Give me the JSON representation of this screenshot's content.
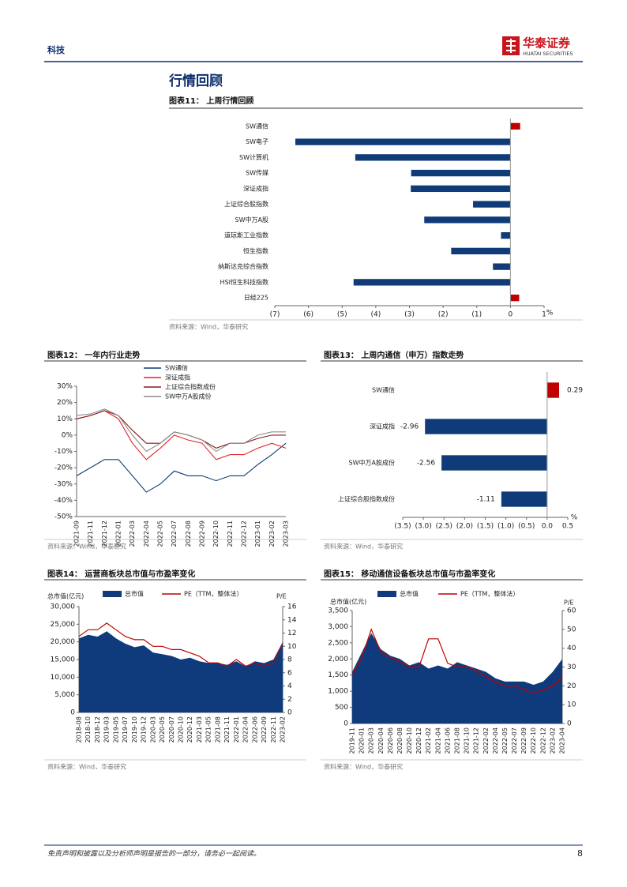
{
  "header": {
    "section": "科技",
    "brand": "华泰证券",
    "brand_en": "HUATAI SECURITIES"
  },
  "section_title": "行情回顾",
  "footer": {
    "disclaimer": "免责声明和披露以及分析师声明是报告的一部分，请务必一起阅读。",
    "page": 8
  },
  "chart_data": [
    {
      "type": "barh",
      "title": "图表11： 上周行情回顾",
      "source": "资料来源：Wind，华泰研究",
      "xlabel": "%",
      "categories": [
        "SW通信",
        "SW电子",
        "SW计算机",
        "SW传媒",
        "深证成指",
        "上证综合股指数",
        "SW中万A股",
        "道琼斯工业指数",
        "恒生指数",
        "纳斯达克综合指数",
        "HSI恒生科技指数",
        "日经225"
      ],
      "values": [
        0.29,
        -6.39,
        -4.61,
        -2.95,
        -2.96,
        -1.11,
        -2.56,
        -0.28,
        -1.76,
        -0.52,
        -4.66,
        0.26
      ],
      "positive_color": "#c00000",
      "negative_color": "#0f3b78",
      "data_labels": false,
      "xlim": [
        -7,
        1
      ],
      "xticks": [
        {
          "value": -7,
          "label": "(7)"
        },
        {
          "value": -6,
          "label": "(6)"
        },
        {
          "value": -5,
          "label": "(5)"
        },
        {
          "value": -4,
          "label": "(4)"
        },
        {
          "value": -3,
          "label": "(3)"
        },
        {
          "value": -2,
          "label": "(2)"
        },
        {
          "value": -1,
          "label": "(1)"
        },
        0,
        1
      ]
    },
    {
      "type": "line",
      "title": "图表12： 一年内行业走势",
      "source": "资料来源：Wind，华泰研究",
      "categories": [
        "2021-09",
        "2021-11",
        "2021-12",
        "2022-01",
        "2022-03",
        "2022-04",
        "2022-05",
        "2022-07",
        "2022-08",
        "2022-09",
        "2022-10",
        "2022-11",
        "2022-12",
        "2023-01",
        "2023-02",
        "2023-03"
      ],
      "series": [
        {
          "name": "SW通信",
          "color": "#0f3b78",
          "values": [
            -25,
            -20,
            -15,
            -15,
            -25,
            -35,
            -30,
            -22,
            -25,
            -25,
            -28,
            -25,
            -25,
            -18,
            -12,
            -5
          ]
        },
        {
          "name": "深证成指",
          "color": "#e0262b",
          "values": [
            10,
            12,
            15,
            10,
            -5,
            -15,
            -8,
            0,
            -3,
            -5,
            -15,
            -12,
            -12,
            -8,
            -5,
            -8
          ]
        },
        {
          "name": "上证综合指数成份",
          "color": "#8b1a1a",
          "values": [
            10,
            12,
            15,
            12,
            3,
            -5,
            -5,
            2,
            0,
            -3,
            -8,
            -5,
            -5,
            -2,
            0,
            0
          ]
        },
        {
          "name": "SW中万A股成份",
          "color": "#8c8c8c",
          "values": [
            12,
            13,
            16,
            12,
            0,
            -10,
            -5,
            2,
            0,
            -3,
            -10,
            -5,
            -5,
            0,
            2,
            2
          ]
        }
      ],
      "ylim": [
        -50,
        30
      ],
      "yticks": [
        {
          "value": -50,
          "label": "-50%"
        },
        {
          "value": -40,
          "label": "-40%"
        },
        {
          "value": -30,
          "label": "-30%"
        },
        {
          "value": -20,
          "label": "-20%"
        },
        {
          "value": -10,
          "label": "-10%"
        },
        {
          "value": 0,
          "label": "0%"
        },
        {
          "value": 10,
          "label": "10%"
        },
        {
          "value": 20,
          "label": "20%"
        },
        {
          "value": 30,
          "label": "30%"
        }
      ]
    },
    {
      "type": "barh",
      "title": "图表13： 上周内通信（申万）指数走势",
      "source": "资料来源：Wind，华泰研究",
      "xlabel": "%",
      "categories": [
        "SW通信",
        "深证成指",
        "SW中万A股成份",
        "上证综合股指数成份"
      ],
      "values": [
        0.29,
        -2.96,
        -2.56,
        -1.11
      ],
      "positive_color": "#c00000",
      "negative_color": "#0f3b78",
      "data_labels": true,
      "xlim": [
        -3.5,
        0.5
      ],
      "xticks": [
        {
          "value": -3.5,
          "label": "(3.5)"
        },
        {
          "value": -3,
          "label": "(3.0)"
        },
        {
          "value": -2.5,
          "label": "(2.5)"
        },
        {
          "value": -2,
          "label": "(2.0)"
        },
        {
          "value": -1.5,
          "label": "(1.5)"
        },
        {
          "value": -1,
          "label": "(1.0)"
        },
        {
          "value": -0.5,
          "label": "(0.5)"
        },
        {
          "value": 0,
          "label": "0.0"
        },
        0.5
      ]
    },
    {
      "type": "combo",
      "title": "图表14： 运营商板块总市值与市盈率变化",
      "source": "资料来源：Wind，华泰研究",
      "ylabel": "总市值(亿元)",
      "y2label": "P/E",
      "categories": [
        "2018-08",
        "2018-10",
        "2018-12",
        "2019-03",
        "2019-05",
        "2019-07",
        "2019-10",
        "2019-12",
        "2020-03",
        "2020-05",
        "2020-07",
        "2020-10",
        "2020-12",
        "2021-03",
        "2021-05",
        "2021-08",
        "2021-11",
        "2022-01",
        "2022-04",
        "2022-06",
        "2022-09",
        "2022-11",
        "2023-02"
      ],
      "series": [
        {
          "name": "总市值",
          "color": "#0f3b7c",
          "style": "area",
          "values": [
            21000,
            22000,
            21500,
            23000,
            21000,
            19500,
            18500,
            19000,
            17000,
            16500,
            16000,
            15000,
            15500,
            14500,
            14000,
            14000,
            13500,
            14500,
            13000,
            14500,
            14000,
            15000,
            20000
          ]
        },
        {
          "name": "PE（TTM，整体法）",
          "color": "#c00000",
          "style": "line",
          "axis": "y2",
          "values": [
            11.5,
            12.5,
            12.5,
            13.5,
            12.5,
            11.5,
            11,
            11,
            10,
            10,
            9.5,
            9.5,
            9,
            8.5,
            7.5,
            7.5,
            7,
            8,
            7,
            7.5,
            7,
            7.5,
            10.5
          ]
        }
      ],
      "ylim": [
        0,
        30000
      ],
      "yticks": [
        0,
        {
          "value": 5000,
          "label": "5,000"
        },
        {
          "value": 10000,
          "label": "10,000"
        },
        {
          "value": 15000,
          "label": "15,000"
        },
        {
          "value": 20000,
          "label": "20,000"
        },
        {
          "value": 25000,
          "label": "25,000"
        },
        {
          "value": 30000,
          "label": "30,000"
        }
      ],
      "y2lim": [
        0,
        16
      ],
      "y2ticks": [
        0,
        2,
        4,
        6,
        8,
        10,
        12,
        14,
        16
      ]
    },
    {
      "type": "combo",
      "title": "图表15： 移动通信设备板块总市值与市盈率变化",
      "source": "资料来源：Wind，华泰研究",
      "ylabel": "总市值(亿元)",
      "y2label": "P/E",
      "categories": [
        "2019-11",
        "2020-01",
        "2020-03",
        "2020-04",
        "2020-06",
        "2020-08",
        "2020-10",
        "2020-12",
        "2021-02",
        "2021-04",
        "2021-06",
        "2021-08",
        "2021-10",
        "2021-12",
        "2022-02",
        "2022-04",
        "2022-05",
        "2022-07",
        "2022-09",
        "2022-10",
        "2022-12",
        "2023-02",
        "2023-04"
      ],
      "series": [
        {
          "name": "总市值",
          "color": "#0f3b7c",
          "style": "area",
          "values": [
            1600,
            2200,
            2800,
            2300,
            2100,
            2000,
            1800,
            1900,
            1700,
            1800,
            1700,
            1900,
            1800,
            1700,
            1600,
            1400,
            1300,
            1300,
            1300,
            1200,
            1300,
            1600,
            2000
          ]
        },
        {
          "name": "PE（TTM，整体法）",
          "color": "#c00000",
          "style": "line",
          "axis": "y2",
          "values": [
            26,
            35,
            50,
            38,
            35,
            33,
            30,
            30,
            45,
            45,
            32,
            30,
            30,
            28,
            25,
            22,
            20,
            20,
            18,
            16,
            18,
            20,
            25
          ]
        }
      ],
      "ylim": [
        0,
        3500
      ],
      "yticks": [
        0,
        500,
        {
          "value": 1000,
          "label": "1,000"
        },
        {
          "value": 1500,
          "label": "1,500"
        },
        {
          "value": 2000,
          "label": "2,000"
        },
        {
          "value": 2500,
          "label": "2,500"
        },
        {
          "value": 3000,
          "label": "3,000"
        },
        {
          "value": 3500,
          "label": "3,500"
        }
      ],
      "y2lim": [
        0,
        60
      ],
      "y2ticks": [
        0,
        10,
        20,
        30,
        40,
        50,
        60
      ]
    }
  ]
}
